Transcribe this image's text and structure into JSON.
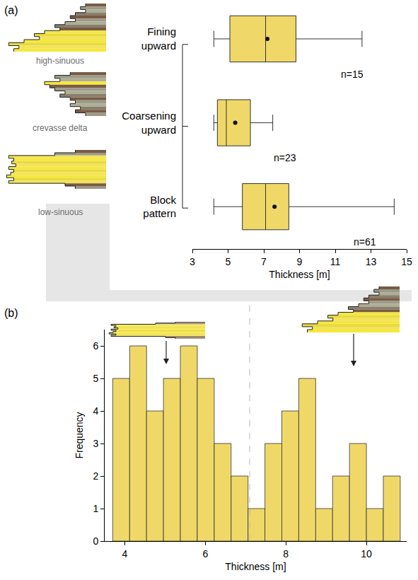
{
  "chart_data": [
    {
      "type": "box",
      "panel": "(a)",
      "orientation": "horizontal",
      "categories": [
        "Fining upward",
        "Coarsening upward",
        "Block pattern"
      ],
      "lowerfence": [
        4.2,
        4.2,
        4.2
      ],
      "q1": [
        5.1,
        4.4,
        5.8
      ],
      "median": [
        7.1,
        4.9,
        7.1
      ],
      "q3": [
        8.8,
        6.25,
        8.4
      ],
      "upperfence": [
        12.5,
        7.5,
        14.3
      ],
      "mean": [
        7.2,
        5.4,
        7.6
      ],
      "annotations": [
        "n=15",
        "n=23",
        "n=61"
      ],
      "icon_labels": [
        "high-sinuous",
        "crevasse delta",
        "low-sinuous"
      ],
      "xlabel": "Thickness [m]",
      "xlim": [
        3,
        15
      ],
      "xticks": [
        3,
        5,
        7,
        9,
        11,
        13,
        15
      ],
      "color": "#f0d868",
      "grid": false
    },
    {
      "type": "histogram",
      "panel": "(b)",
      "bins": [
        3.7,
        4.12,
        4.54,
        4.96,
        5.38,
        5.8,
        6.22,
        6.64,
        7.06,
        7.48,
        7.9,
        8.32,
        8.74,
        9.16,
        9.58,
        10.0,
        10.42,
        10.84
      ],
      "counts": [
        5,
        6,
        4,
        5,
        6,
        5,
        3,
        2,
        1,
        3,
        4,
        5,
        1,
        2,
        3,
        1,
        2
      ],
      "divider_x": 7.1,
      "xlabel": "Thickness [m]",
      "ylabel": "Frequency",
      "xlim": [
        3.5,
        11.0
      ],
      "xticks": [
        4,
        6,
        8,
        10
      ],
      "ylim": [
        0,
        6.5
      ],
      "yticks": [
        0,
        1,
        2,
        3,
        4,
        5,
        6
      ],
      "color": "#f0d868",
      "grid": false
    }
  ]
}
